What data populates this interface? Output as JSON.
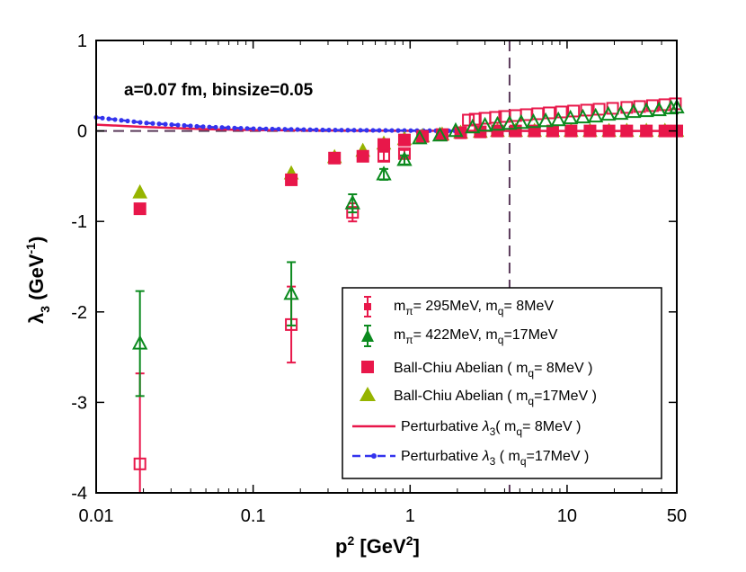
{
  "chart_data": {
    "type": "scatter",
    "title": "",
    "annotation": "a=0.07 fm, binsize=0.05",
    "xlabel": "p² [GeV²]",
    "ylabel": "λ₃ (GeV⁻¹)",
    "xscale": "log",
    "xlim": [
      0.01,
      50
    ],
    "ylim": [
      -4,
      1
    ],
    "x_ticks": [
      0.01,
      0.1,
      1,
      10,
      50
    ],
    "x_tick_labels": [
      "0.01",
      "0.1",
      "1",
      "10",
      "50"
    ],
    "y_ticks": [
      1,
      0,
      -1,
      -2,
      -3,
      -4
    ],
    "y_tick_labels": [
      "1",
      "0",
      "-1",
      "-2",
      "-3",
      "-4"
    ],
    "vertical_line_x": 4.3,
    "zero_line_y": 0,
    "legend_position": "lower-right",
    "colors": {
      "crimson": "#e8174a",
      "green": "#0b8a1e",
      "olive": "#96b400",
      "blue": "#3333ee",
      "dash": "#5a3a5a"
    },
    "series": [
      {
        "name": "mπ= 295MeV, mq= 8MeV",
        "marker": "open-square",
        "color": "#e8174a",
        "points": [
          {
            "x": 0.019,
            "y": -3.68,
            "err": 1.0
          },
          {
            "x": 0.175,
            "y": -2.14,
            "err": 0.42
          },
          {
            "x": 0.43,
            "y": -0.9,
            "err": 0.1
          },
          {
            "x": 0.68,
            "y": -0.28,
            "err": 0.05
          },
          {
            "x": 0.92,
            "y": -0.25,
            "err": 0.04
          },
          {
            "x": 2.35,
            "y": 0.12
          },
          {
            "x": 2.6,
            "y": 0.13
          },
          {
            "x": 3.0,
            "y": 0.14
          },
          {
            "x": 3.5,
            "y": 0.15
          },
          {
            "x": 4.0,
            "y": 0.16
          },
          {
            "x": 4.7,
            "y": 0.17
          },
          {
            "x": 5.5,
            "y": 0.18
          },
          {
            "x": 6.5,
            "y": 0.19
          },
          {
            "x": 7.7,
            "y": 0.2
          },
          {
            "x": 9.2,
            "y": 0.21
          },
          {
            "x": 11,
            "y": 0.22
          },
          {
            "x": 13.3,
            "y": 0.23
          },
          {
            "x": 16,
            "y": 0.24
          },
          {
            "x": 19.5,
            "y": 0.25
          },
          {
            "x": 24,
            "y": 0.26
          },
          {
            "x": 29,
            "y": 0.27
          },
          {
            "x": 35,
            "y": 0.28
          },
          {
            "x": 42,
            "y": 0.29
          },
          {
            "x": 49,
            "y": 0.3
          }
        ]
      },
      {
        "name": "mπ= 422MeV, mq=17MeV",
        "marker": "open-triangle",
        "color": "#0b8a1e",
        "points": [
          {
            "x": 0.019,
            "y": -2.35,
            "err": 0.58
          },
          {
            "x": 0.175,
            "y": -1.8,
            "err": 0.35
          },
          {
            "x": 0.43,
            "y": -0.8,
            "err": 0.1
          },
          {
            "x": 0.68,
            "y": -0.48,
            "err": 0.06
          },
          {
            "x": 0.92,
            "y": -0.32,
            "err": 0.05
          },
          {
            "x": 1.15,
            "y": -0.08
          },
          {
            "x": 1.55,
            "y": -0.05
          },
          {
            "x": 1.95,
            "y": 0.0
          },
          {
            "x": 2.5,
            "y": 0.04
          },
          {
            "x": 3.0,
            "y": 0.06
          },
          {
            "x": 3.6,
            "y": 0.07
          },
          {
            "x": 4.3,
            "y": 0.08
          },
          {
            "x": 5.1,
            "y": 0.09
          },
          {
            "x": 6.1,
            "y": 0.1
          },
          {
            "x": 7.3,
            "y": 0.11
          },
          {
            "x": 8.8,
            "y": 0.12
          },
          {
            "x": 10.5,
            "y": 0.14
          },
          {
            "x": 12.6,
            "y": 0.15
          },
          {
            "x": 15.2,
            "y": 0.16
          },
          {
            "x": 18.3,
            "y": 0.18
          },
          {
            "x": 22,
            "y": 0.19
          },
          {
            "x": 26.5,
            "y": 0.21
          },
          {
            "x": 32,
            "y": 0.22
          },
          {
            "x": 38.5,
            "y": 0.23
          },
          {
            "x": 46,
            "y": 0.25
          },
          {
            "x": 50,
            "y": 0.26
          }
        ]
      },
      {
        "name": "Ball-Chiu Abelian ( mq= 8MeV )",
        "marker": "filled-square",
        "color": "#e8174a",
        "points": [
          {
            "x": 0.019,
            "y": -0.86
          },
          {
            "x": 0.175,
            "y": -0.54
          },
          {
            "x": 0.33,
            "y": -0.3
          },
          {
            "x": 0.5,
            "y": -0.28
          },
          {
            "x": 0.68,
            "y": -0.15
          },
          {
            "x": 0.92,
            "y": -0.1
          },
          {
            "x": 1.2,
            "y": -0.06
          },
          {
            "x": 1.6,
            "y": -0.04
          },
          {
            "x": 2.1,
            "y": -0.02
          },
          {
            "x": 2.8,
            "y": -0.01
          },
          {
            "x": 3.6,
            "y": 0.0
          },
          {
            "x": 4.7,
            "y": 0.0
          },
          {
            "x": 6.2,
            "y": 0.0
          },
          {
            "x": 8.1,
            "y": 0.0
          },
          {
            "x": 10.6,
            "y": 0.0
          },
          {
            "x": 14,
            "y": 0.0
          },
          {
            "x": 18.5,
            "y": 0.0
          },
          {
            "x": 24,
            "y": 0.0
          },
          {
            "x": 32,
            "y": 0.0
          },
          {
            "x": 42,
            "y": 0.0
          },
          {
            "x": 50,
            "y": 0.0
          }
        ]
      },
      {
        "name": "Ball-Chiu Abelian ( mq=17MeV )",
        "marker": "filled-triangle",
        "color": "#96b400",
        "points": [
          {
            "x": 0.019,
            "y": -0.68
          },
          {
            "x": 0.175,
            "y": -0.47
          },
          {
            "x": 0.33,
            "y": -0.29
          },
          {
            "x": 0.5,
            "y": -0.22
          },
          {
            "x": 0.68,
            "y": -0.14
          },
          {
            "x": 0.92,
            "y": -0.09
          },
          {
            "x": 1.2,
            "y": -0.06
          },
          {
            "x": 1.6,
            "y": -0.04
          },
          {
            "x": 2.1,
            "y": -0.02
          },
          {
            "x": 2.8,
            "y": -0.01
          },
          {
            "x": 3.6,
            "y": 0.0
          },
          {
            "x": 4.7,
            "y": 0.0
          },
          {
            "x": 6.2,
            "y": 0.0
          },
          {
            "x": 8.1,
            "y": 0.0
          },
          {
            "x": 10.6,
            "y": 0.0
          },
          {
            "x": 14,
            "y": 0.0
          },
          {
            "x": 18.5,
            "y": 0.0
          },
          {
            "x": 24,
            "y": 0.0
          },
          {
            "x": 32,
            "y": 0.0
          },
          {
            "x": 42,
            "y": 0.0
          },
          {
            "x": 50,
            "y": 0.0
          }
        ]
      },
      {
        "name": "Perturbative λ3( mq= 8MeV )",
        "marker": "solid-line",
        "color": "#e8174a",
        "points": [
          {
            "x": 0.01,
            "y": 0.07
          },
          {
            "x": 0.02,
            "y": 0.045
          },
          {
            "x": 0.05,
            "y": 0.02
          },
          {
            "x": 0.1,
            "y": 0.01
          },
          {
            "x": 0.3,
            "y": 0.005
          },
          {
            "x": 1,
            "y": 0.002
          },
          {
            "x": 3,
            "y": 0.001
          },
          {
            "x": 10,
            "y": 0.0
          },
          {
            "x": 50,
            "y": 0.0
          }
        ]
      },
      {
        "name": "Perturbative λ3 ( mq=17MeV )",
        "marker": "dashed-dotted-line",
        "color": "#3333ee",
        "points": [
          {
            "x": 0.01,
            "y": 0.15
          },
          {
            "x": 0.02,
            "y": 0.09
          },
          {
            "x": 0.05,
            "y": 0.045
          },
          {
            "x": 0.1,
            "y": 0.025
          },
          {
            "x": 0.3,
            "y": 0.01
          },
          {
            "x": 1,
            "y": 0.004
          },
          {
            "x": 2,
            "y": 0.002
          }
        ]
      }
    ]
  },
  "legend": {
    "entries": [
      {
        "id": "s1",
        "pre": "m",
        "sub1": "π",
        "mid": "= 295MeV, m",
        "sub2": "q",
        "post": "= 8MeV"
      },
      {
        "id": "s2",
        "pre": "m",
        "sub1": "π",
        "mid": "= 422MeV, m",
        "sub2": "q",
        "post": "=17MeV"
      },
      {
        "id": "s3",
        "pre": "Ball-Chiu Abelian ( m",
        "sub1": "q",
        "mid": "= 8MeV )"
      },
      {
        "id": "s4",
        "pre": "Ball-Chiu Abelian ( m",
        "sub1": "q",
        "mid": "=17MeV )"
      },
      {
        "id": "s5",
        "pre": "Perturbative ",
        "greek": "λ",
        "sub1": "3",
        "mid": "( m",
        "sub2": "q",
        "post": "= 8MeV )"
      },
      {
        "id": "s6",
        "pre": "Perturbative ",
        "greek": "λ",
        "sub1": "3",
        "mid": " ( m",
        "sub2": "q",
        "post": "=17MeV )"
      }
    ]
  },
  "axis_text": {
    "x_main": "p",
    "x_sup": "2",
    "x_unit_open": " [GeV",
    "x_unit_sup": "2",
    "x_unit_close": "]",
    "y_greek": "λ",
    "y_sub": "3",
    "y_unit": " (GeV",
    "y_unit_sup": "-1",
    "y_unit_close": ")"
  }
}
